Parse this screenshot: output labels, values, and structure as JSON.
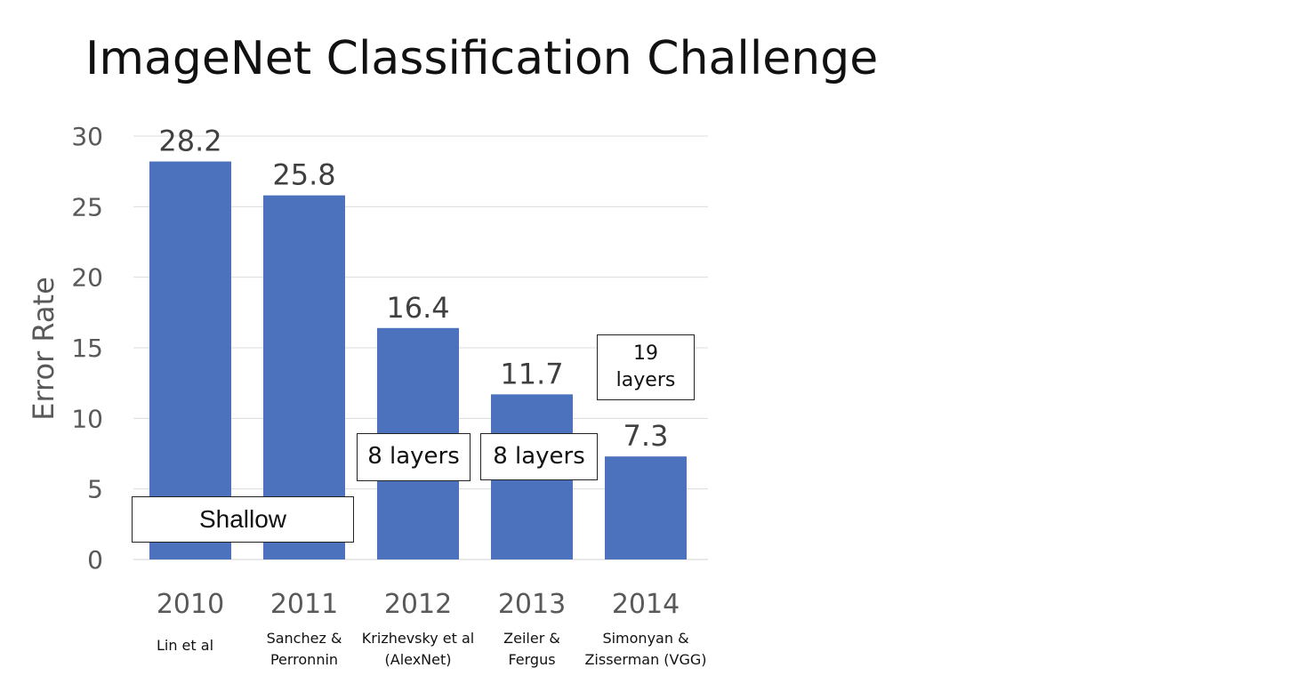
{
  "title": "ImageNet Classification Challenge",
  "chart_data": {
    "type": "bar",
    "categories": [
      "2010",
      "2011",
      "2012",
      "2013",
      "2014"
    ],
    "values": [
      28.2,
      25.8,
      16.4,
      11.7,
      7.3
    ],
    "data_labels": [
      "28.2",
      "25.8",
      "16.4",
      "11.7",
      "7.3"
    ],
    "authors": [
      [
        "Lin et al"
      ],
      [
        "Sanchez &",
        "Perronnin"
      ],
      [
        "Krizhevsky et al",
        "(AlexNet)"
      ],
      [
        "Zeiler &",
        "Fergus"
      ],
      [
        "Simonyan &",
        "Zisserman (VGG)"
      ]
    ],
    "ylabel": "Error Rate",
    "xlabel": "",
    "ylim": [
      0,
      30
    ],
    "yticks": [
      "0",
      "5",
      "10",
      "15",
      "20",
      "25",
      "30"
    ],
    "grid": true,
    "bar_color": "#4C72BE",
    "annotations": {
      "shallow": "Shallow",
      "layers_2012": "8 layers",
      "layers_2013": "8 layers",
      "layers_2014": "19 layers"
    }
  }
}
